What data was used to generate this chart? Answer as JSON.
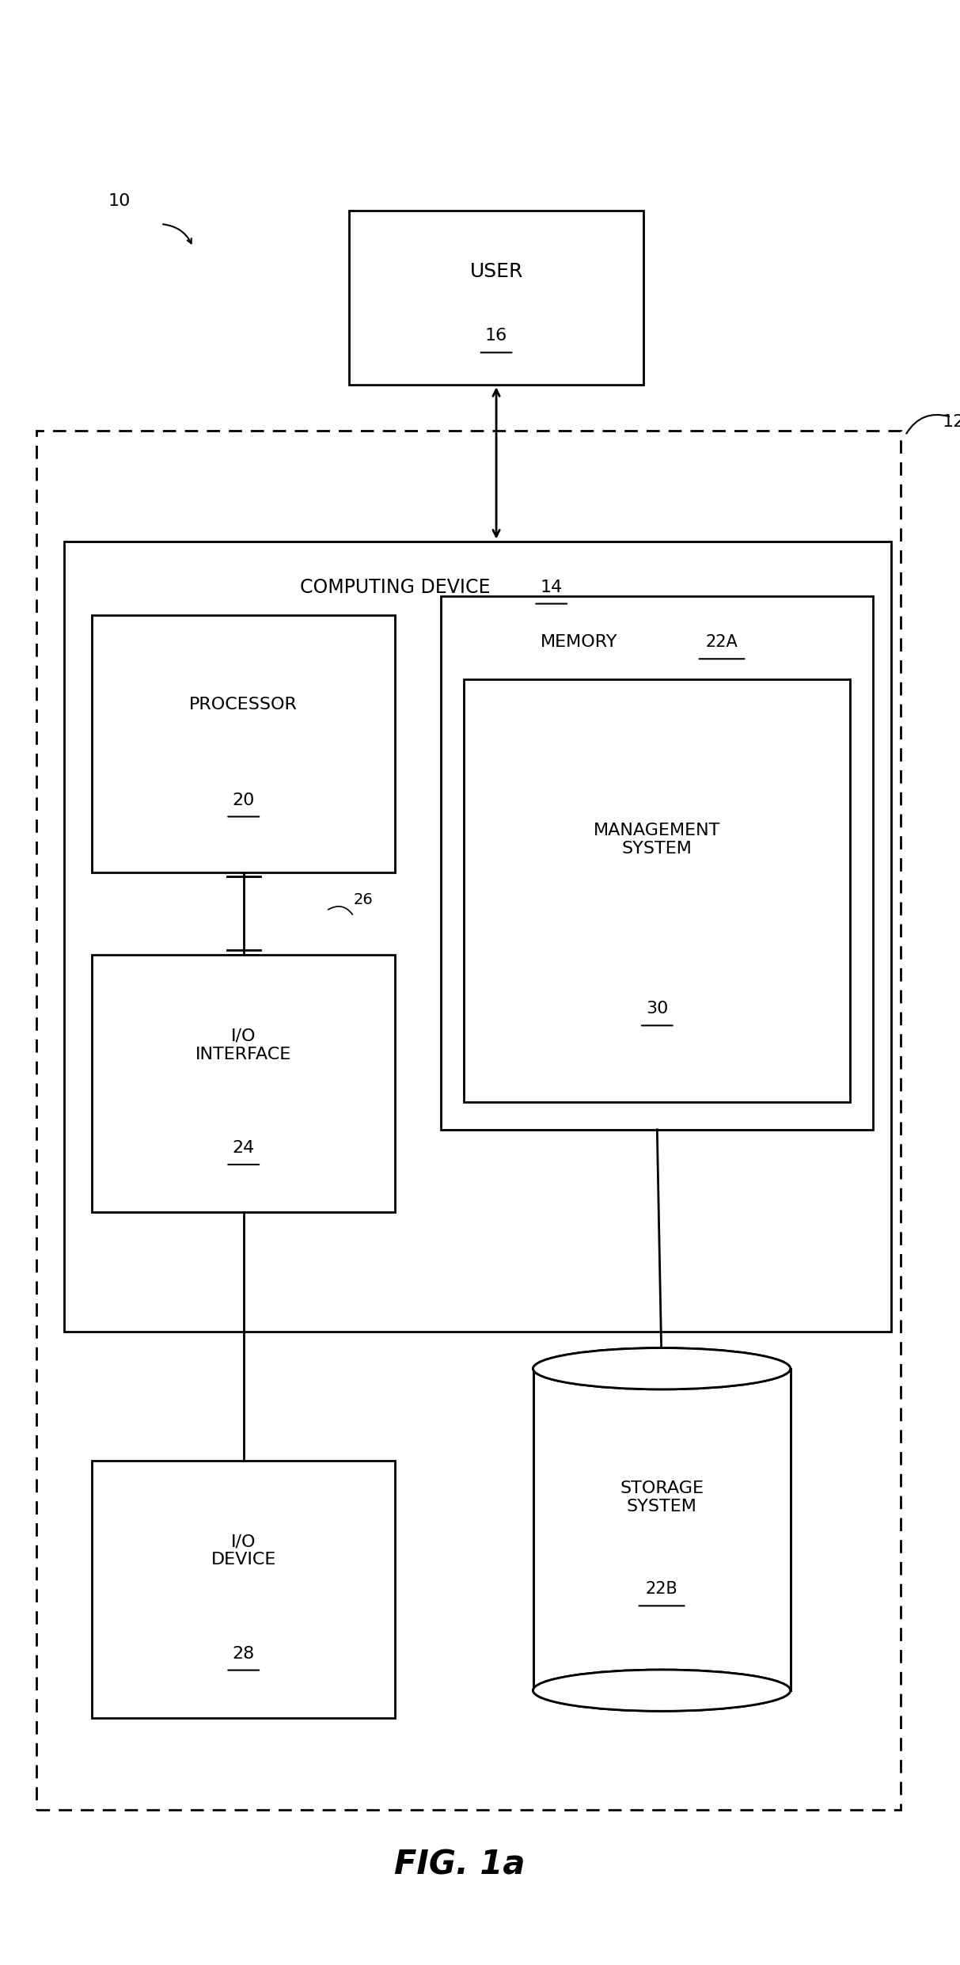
{
  "fig_width": 12.13,
  "fig_height": 24.82,
  "bg_color": "#ffffff",
  "title": "FIG. 1a",
  "label_10": "10",
  "label_12": "12",
  "label_14": "14",
  "label_16": "16",
  "label_20": "20",
  "label_22A": "22A",
  "label_22B": "22B",
  "label_24": "24",
  "label_26": "26",
  "label_28": "28",
  "label_30": "30",
  "text_user": "USER",
  "text_computing_device": "COMPUTING DEVICE",
  "text_processor": "PROCESSOR",
  "text_memory": "MEMORY",
  "text_management_system": "MANAGEMENT\nSYSTEM",
  "text_io_interface": "I/O\nINTERFACE",
  "text_io_device": "I/O\nDEVICE",
  "text_storage_system": "STORAGE\nSYSTEM"
}
